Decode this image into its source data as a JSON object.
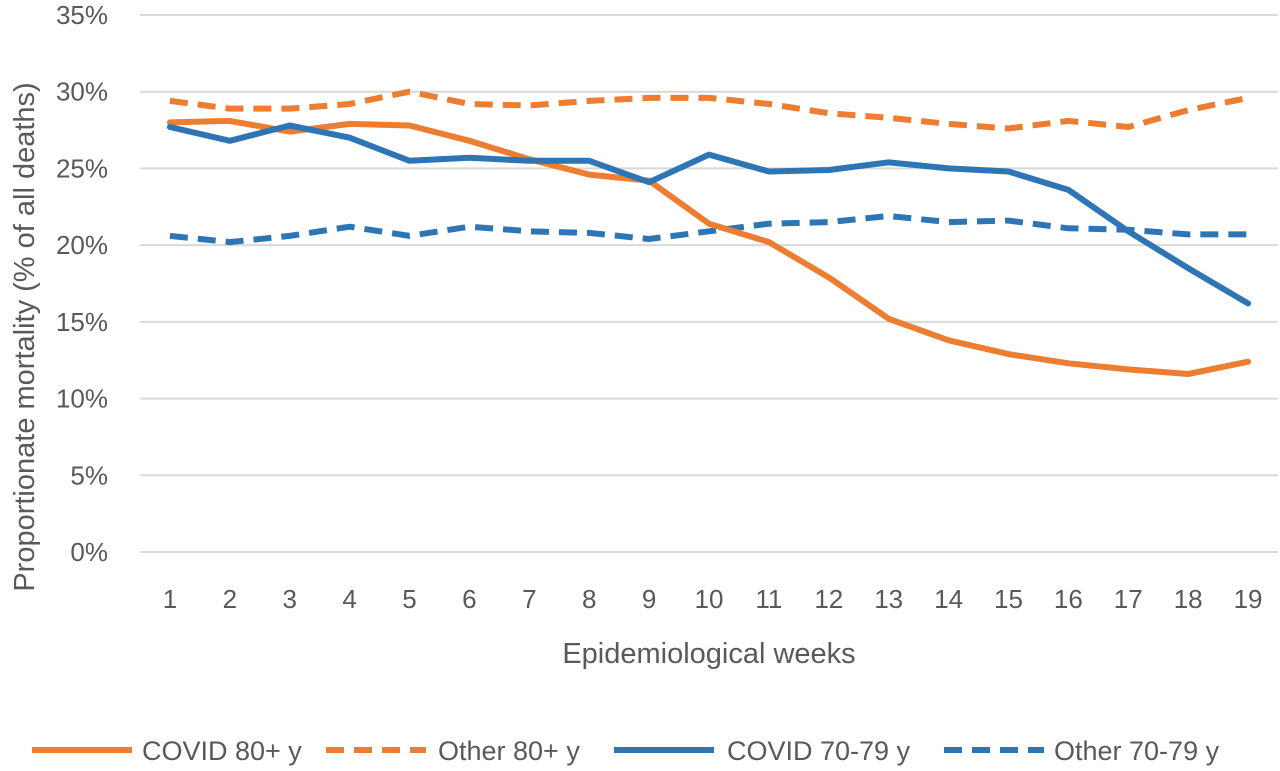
{
  "chart_data": {
    "type": "line",
    "title": "",
    "xlabel": "Epidemiological weeks",
    "ylabel": "Proportionate mortality (% of all deaths)",
    "categories": [
      "1",
      "2",
      "3",
      "4",
      "5",
      "6",
      "7",
      "8",
      "9",
      "10",
      "11",
      "12",
      "13",
      "14",
      "15",
      "16",
      "17",
      "18",
      "19"
    ],
    "ylim": [
      0,
      35
    ],
    "yticks": [
      0,
      5,
      10,
      15,
      20,
      25,
      30,
      35
    ],
    "ytick_labels": [
      "0%",
      "5%",
      "10%",
      "15%",
      "20%",
      "25%",
      "30%",
      "35%"
    ],
    "grid": true,
    "legend_position": "bottom",
    "series": [
      {
        "name": "COVID 80+ y",
        "color": "#ED7D31",
        "dashed": false,
        "values": [
          28.0,
          28.1,
          27.4,
          27.9,
          27.8,
          26.8,
          25.6,
          24.6,
          24.2,
          21.4,
          20.2,
          17.9,
          15.2,
          13.8,
          12.9,
          12.3,
          11.9,
          11.6,
          12.4
        ]
      },
      {
        "name": "Other 80+ y",
        "color": "#ED7D31",
        "dashed": true,
        "values": [
          29.4,
          28.9,
          28.9,
          29.2,
          30.0,
          29.2,
          29.1,
          29.4,
          29.6,
          29.6,
          29.2,
          28.6,
          28.3,
          27.9,
          27.6,
          28.1,
          27.7,
          28.8,
          29.6
        ]
      },
      {
        "name": "COVID 70-79 y",
        "color": "#2E75B6",
        "dashed": false,
        "values": [
          27.7,
          26.8,
          27.8,
          27.0,
          25.5,
          25.7,
          25.5,
          25.5,
          24.1,
          25.9,
          24.8,
          24.9,
          25.4,
          25.0,
          24.8,
          23.6,
          20.9,
          18.5,
          16.2
        ]
      },
      {
        "name": "Other 70-79 y",
        "color": "#2E75B6",
        "dashed": true,
        "values": [
          20.6,
          20.2,
          20.6,
          21.2,
          20.6,
          21.2,
          20.9,
          20.8,
          20.4,
          20.9,
          21.4,
          21.5,
          21.9,
          21.5,
          21.6,
          21.1,
          21.0,
          20.7,
          20.7
        ]
      }
    ]
  }
}
